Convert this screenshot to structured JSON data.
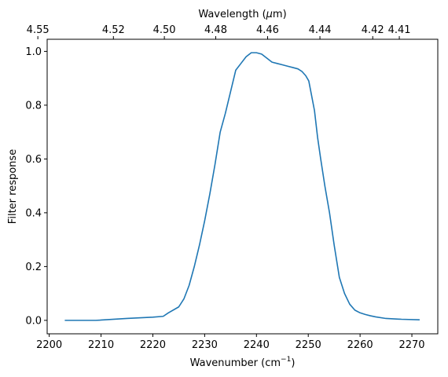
{
  "chart_data": {
    "type": "line",
    "xlabel_main": "Wavenumber (cm",
    "xlabel_sup": "−1",
    "xlabel_close": ")",
    "ylabel": "Filter response",
    "top_xlabel_main": "Wavelength (",
    "top_xlabel_mu": "μ",
    "top_xlabel_end": "m)",
    "xlim": [
      2199.6,
      2275.0
    ],
    "ylim": [
      -0.05,
      1.045
    ],
    "xticks": [
      2200,
      2210,
      2220,
      2230,
      2240,
      2250,
      2260,
      2270
    ],
    "yticks": [
      0.0,
      0.2,
      0.4,
      0.6,
      0.8,
      1.0
    ],
    "ytick_labels": [
      "0.0",
      "0.2",
      "0.4",
      "0.6",
      "0.8",
      "1.0"
    ],
    "top_ticks_um": [
      4.55,
      4.52,
      4.5,
      4.48,
      4.46,
      4.44,
      4.42,
      4.41
    ],
    "top_tick_labels": [
      "4.55",
      "4.52",
      "4.50",
      "4.48",
      "4.46",
      "4.44",
      "4.42",
      "4.41"
    ],
    "line_color": "#1f77b4",
    "grid": false,
    "series": [
      {
        "x": [
          2203,
          2209,
          2215,
          2220,
          2222,
          2223,
          2225,
          2226,
          2227,
          2228,
          2229,
          2230,
          2231,
          2232,
          2233,
          2234,
          2235,
          2236,
          2237,
          2238,
          2239,
          2240,
          2241,
          2242,
          2243,
          2244,
          2245,
          2246,
          2247,
          2248,
          2248.8,
          2249.5,
          2250.1,
          2250.6,
          2251.2,
          2251.8,
          2252.4,
          2253.2,
          2254.1,
          2255,
          2256,
          2257,
          2258,
          2259,
          2260,
          2261,
          2262,
          2263,
          2265,
          2268,
          2271.5
        ],
        "y": [
          0.0,
          0.0,
          0.007,
          0.012,
          0.015,
          0.028,
          0.05,
          0.08,
          0.13,
          0.2,
          0.28,
          0.37,
          0.47,
          0.58,
          0.7,
          0.77,
          0.85,
          0.93,
          0.955,
          0.98,
          0.995,
          0.995,
          0.99,
          0.975,
          0.96,
          0.955,
          0.95,
          0.945,
          0.94,
          0.935,
          0.925,
          0.91,
          0.89,
          0.84,
          0.78,
          0.68,
          0.6,
          0.5,
          0.4,
          0.28,
          0.16,
          0.1,
          0.06,
          0.038,
          0.028,
          0.022,
          0.017,
          0.013,
          0.007,
          0.004,
          0.002
        ]
      }
    ]
  }
}
